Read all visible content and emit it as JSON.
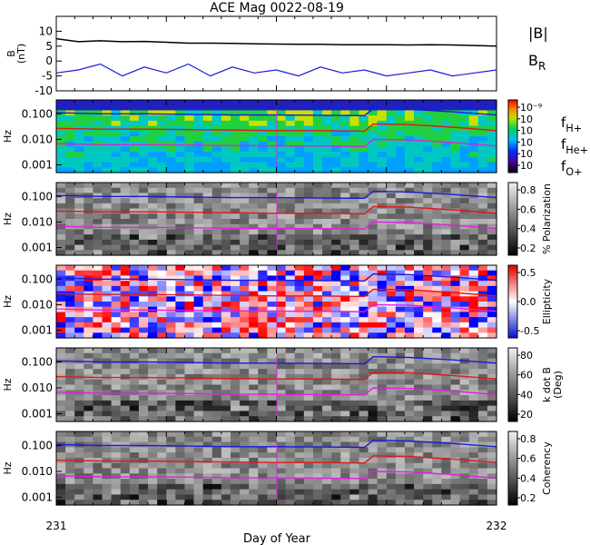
{
  "chart_data": {
    "title": "ACE Mag 0022-08-19",
    "xlabel": "Day of Year",
    "x_tick_labels": [
      "231",
      "232"
    ],
    "xlim": [
      231,
      232
    ],
    "panels": [
      {
        "type": "line",
        "ylabel": "B\n(nT)",
        "ylim": [
          -10,
          15
        ],
        "y_ticks": [
          "10",
          "5",
          "0",
          "-5",
          "-10"
        ],
        "y_tick_values": [
          10,
          5,
          0,
          -5,
          -10
        ],
        "legend": [
          {
            "label": "|B|",
            "color": "#000000"
          },
          {
            "label": "B",
            "sub": "R",
            "color": "#1a1adc"
          }
        ],
        "series": [
          {
            "name": "|B|",
            "color": "#000000",
            "x": [
              231.0,
              231.05,
              231.1,
              231.15,
              231.2,
              231.25,
              231.3,
              231.35,
              231.4,
              231.45,
              231.5,
              231.55,
              231.6,
              231.65,
              231.7,
              231.75,
              231.8,
              231.85,
              231.9,
              231.95,
              232.0
            ],
            "values": [
              7.5,
              6.5,
              6.8,
              6.5,
              6.6,
              6.3,
              6.0,
              6.0,
              5.9,
              5.8,
              5.7,
              5.6,
              5.6,
              5.5,
              5.5,
              5.5,
              5.4,
              5.5,
              5.4,
              5.2,
              5.0
            ]
          },
          {
            "name": "B_R",
            "color": "#1a1adc",
            "x": [
              231.0,
              231.05,
              231.1,
              231.15,
              231.2,
              231.25,
              231.3,
              231.35,
              231.4,
              231.45,
              231.5,
              231.55,
              231.6,
              231.65,
              231.7,
              231.75,
              231.8,
              231.85,
              231.9,
              231.95,
              232.0
            ],
            "values": [
              -4,
              -3,
              -1,
              -5,
              -2,
              -4,
              -1,
              -5,
              -2,
              -4,
              -3,
              -5,
              -2,
              -4,
              -3,
              -5,
              -4,
              -3,
              -5,
              -4,
              -3
            ]
          }
        ]
      },
      {
        "type": "heatmap",
        "ylabel": "Hz",
        "y_scale": "log",
        "y_ticks": [
          "0.100",
          "0.010",
          "0.001"
        ],
        "y_tick_values": [
          0.1,
          0.01,
          0.001
        ],
        "colorbar_ticks": [
          "10⁻⁹",
          "10",
          "10",
          "10",
          "10",
          "10"
        ],
        "legend": [
          {
            "label": "f",
            "sub": "H+",
            "color": "#1a1adc"
          },
          {
            "label": "f",
            "sub": "He+",
            "color": "#e01818"
          },
          {
            "label": "f",
            "sub": "O+",
            "color": "#e020e0"
          }
        ]
      },
      {
        "type": "heatmap",
        "ylabel": "Hz",
        "y_scale": "log",
        "y_ticks": [
          "0.100",
          "0.010",
          "0.001"
        ],
        "y_tick_values": [
          0.1,
          0.01,
          0.001
        ],
        "colorbar_ticks": [
          "0.8",
          "0.6",
          "0.4",
          "0.2"
        ],
        "colorbar_label": "% Polarization"
      },
      {
        "type": "heatmap",
        "ylabel": "Hz",
        "y_scale": "log",
        "y_ticks": [
          "0.100",
          "0.010",
          "0.001"
        ],
        "y_tick_values": [
          0.1,
          0.01,
          0.001
        ],
        "colorbar_ticks": [
          "0.5",
          "0.0",
          "-0.5"
        ],
        "colorbar_label": "Ellipticity"
      },
      {
        "type": "heatmap",
        "ylabel": "Hz",
        "y_scale": "log",
        "y_ticks": [
          "0.100",
          "0.010",
          "0.001"
        ],
        "y_tick_values": [
          0.1,
          0.01,
          0.001
        ],
        "colorbar_ticks": [
          "80",
          "60",
          "40",
          "20"
        ],
        "colorbar_label": "k dot B\n(Deg)"
      },
      {
        "type": "heatmap",
        "ylabel": "Hz",
        "y_scale": "log",
        "y_ticks": [
          "0.100",
          "0.010",
          "0.001"
        ],
        "y_tick_values": [
          0.1,
          0.01,
          0.001
        ],
        "colorbar_ticks": [
          "0.8",
          "0.6",
          "0.4",
          "0.2"
        ],
        "colorbar_label": "Coherency"
      }
    ],
    "gyrofrequency_lines": {
      "x": [
        231.0,
        231.1,
        231.2,
        231.3,
        231.4,
        231.5,
        231.6,
        231.7,
        231.72,
        231.8,
        231.9,
        232.0
      ],
      "f_H": [
        0.11,
        0.1,
        0.1,
        0.095,
        0.09,
        0.09,
        0.088,
        0.085,
        0.16,
        0.15,
        0.12,
        0.09
      ],
      "f_He": [
        0.027,
        0.025,
        0.025,
        0.024,
        0.023,
        0.022,
        0.022,
        0.021,
        0.04,
        0.038,
        0.03,
        0.022
      ],
      "f_O": [
        0.0068,
        0.0062,
        0.0062,
        0.006,
        0.0057,
        0.0056,
        0.0055,
        0.0053,
        0.01,
        0.0095,
        0.0075,
        0.0055
      ]
    }
  }
}
